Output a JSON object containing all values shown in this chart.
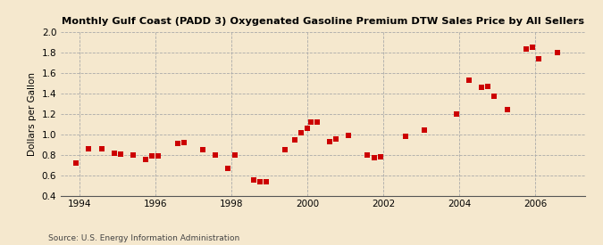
{
  "title": "Monthly Gulf Coast (PADD 3) Oxygenated Gasoline Premium DTW Sales Price by All Sellers",
  "ylabel": "Dollars per Gallon",
  "source": "Source: U.S. Energy Information Administration",
  "background_color": "#f5e8ce",
  "plot_background_color": "#f5e8ce",
  "marker_color": "#cc0000",
  "marker_size": 18,
  "xlim": [
    1993.5,
    2007.3
  ],
  "ylim": [
    0.4,
    2.0
  ],
  "yticks": [
    0.4,
    0.6,
    0.8,
    1.0,
    1.2,
    1.4,
    1.6,
    1.8,
    2.0
  ],
  "xticks": [
    1994,
    1996,
    1998,
    2000,
    2002,
    2004,
    2006
  ],
  "data_points": [
    [
      1993.917,
      0.72
    ],
    [
      1994.25,
      0.86
    ],
    [
      1994.583,
      0.86
    ],
    [
      1994.917,
      0.82
    ],
    [
      1995.083,
      0.81
    ],
    [
      1995.417,
      0.8
    ],
    [
      1995.75,
      0.76
    ],
    [
      1995.917,
      0.79
    ],
    [
      1996.083,
      0.79
    ],
    [
      1996.583,
      0.91
    ],
    [
      1996.75,
      0.92
    ],
    [
      1997.25,
      0.85
    ],
    [
      1997.583,
      0.8
    ],
    [
      1997.917,
      0.67
    ],
    [
      1998.083,
      0.8
    ],
    [
      1998.583,
      0.56
    ],
    [
      1998.75,
      0.54
    ],
    [
      1998.917,
      0.54
    ],
    [
      1999.417,
      0.85
    ],
    [
      1999.667,
      0.95
    ],
    [
      1999.833,
      1.02
    ],
    [
      2000.0,
      1.06
    ],
    [
      2000.083,
      1.12
    ],
    [
      2000.25,
      1.12
    ],
    [
      2000.583,
      0.93
    ],
    [
      2000.75,
      0.96
    ],
    [
      2001.083,
      0.99
    ],
    [
      2001.583,
      0.8
    ],
    [
      2001.75,
      0.77
    ],
    [
      2001.917,
      0.78
    ],
    [
      2002.583,
      0.98
    ],
    [
      2003.083,
      1.04
    ],
    [
      2003.917,
      1.2
    ],
    [
      2004.25,
      1.53
    ],
    [
      2004.583,
      1.46
    ],
    [
      2004.75,
      1.47
    ],
    [
      2004.917,
      1.37
    ],
    [
      2005.25,
      1.24
    ],
    [
      2005.75,
      1.83
    ],
    [
      2005.917,
      1.85
    ],
    [
      2006.083,
      1.74
    ],
    [
      2006.583,
      1.8
    ]
  ]
}
